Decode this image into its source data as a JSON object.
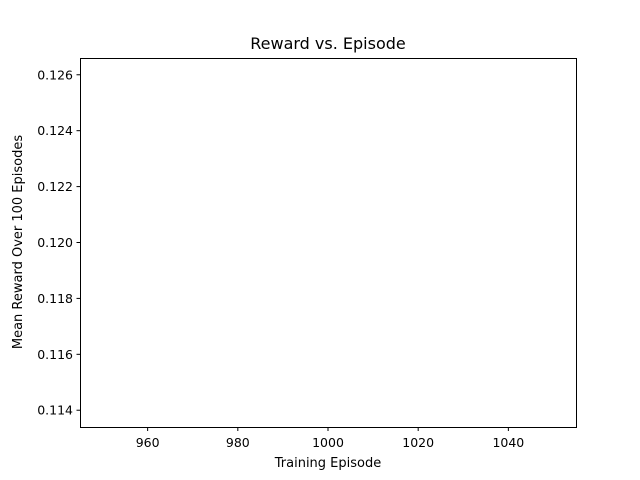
{
  "chart_data": {
    "type": "line",
    "title": "Reward vs. Episode",
    "xlabel": "Training Episode",
    "ylabel": "Mean Reward Over 100 Episodes",
    "xlim": [
      945,
      1055
    ],
    "ylim": [
      0.1134,
      0.1266
    ],
    "x_ticks": [
      "960",
      "980",
      "1000",
      "1020",
      "1040"
    ],
    "y_ticks": [
      "0.114",
      "0.116",
      "0.118",
      "0.120",
      "0.122",
      "0.124",
      "0.126"
    ],
    "series": [
      {
        "x": [],
        "y": []
      }
    ],
    "grid": false,
    "legend": "none"
  }
}
